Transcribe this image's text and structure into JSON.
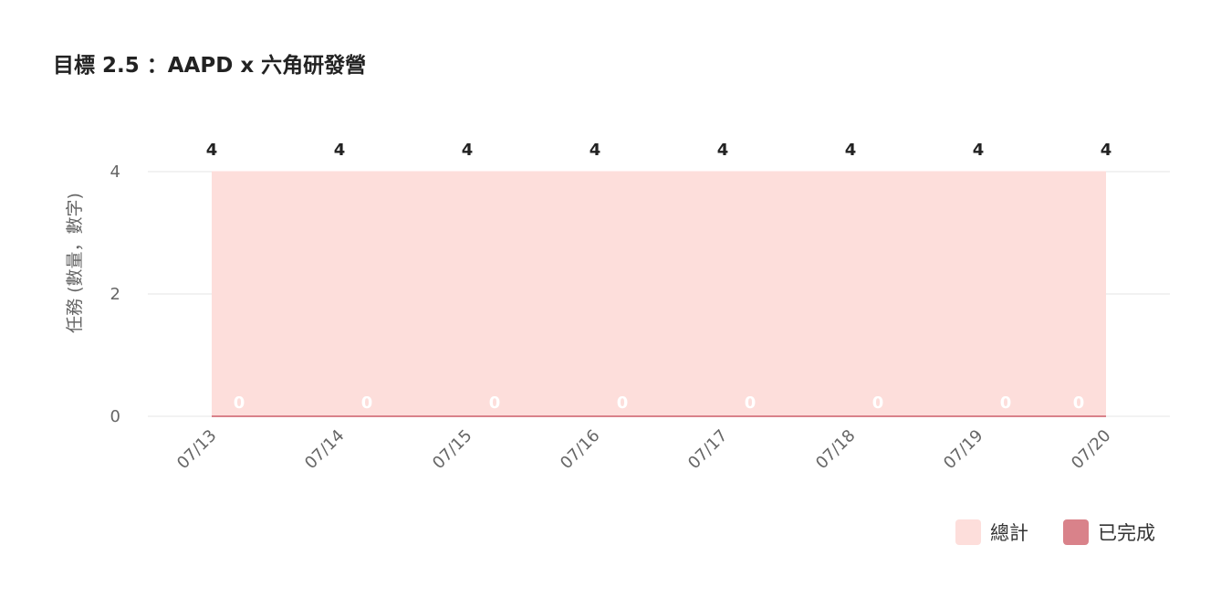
{
  "title": "目標 2.5 ：AAPD x 六角研發營",
  "chart_data": {
    "type": "area",
    "title": "目標 2.5 ：AAPD x 六角研發營",
    "xlabel": "",
    "ylabel": "任務 (數量，數字)",
    "categories": [
      "07/13",
      "07/14",
      "07/15",
      "07/16",
      "07/17",
      "07/18",
      "07/19",
      "07/20"
    ],
    "series": [
      {
        "name": "總計",
        "values": [
          4,
          4,
          4,
          4,
          4,
          4,
          4,
          4
        ],
        "color": "#fddedb"
      },
      {
        "name": "已完成",
        "values": [
          0,
          0,
          0,
          0,
          0,
          0,
          0,
          0
        ],
        "color": "#d9828a"
      }
    ],
    "ylim": [
      0,
      4
    ],
    "yticks": [
      "0",
      "2",
      "4"
    ],
    "grid": true,
    "legend": "bottom-right"
  }
}
